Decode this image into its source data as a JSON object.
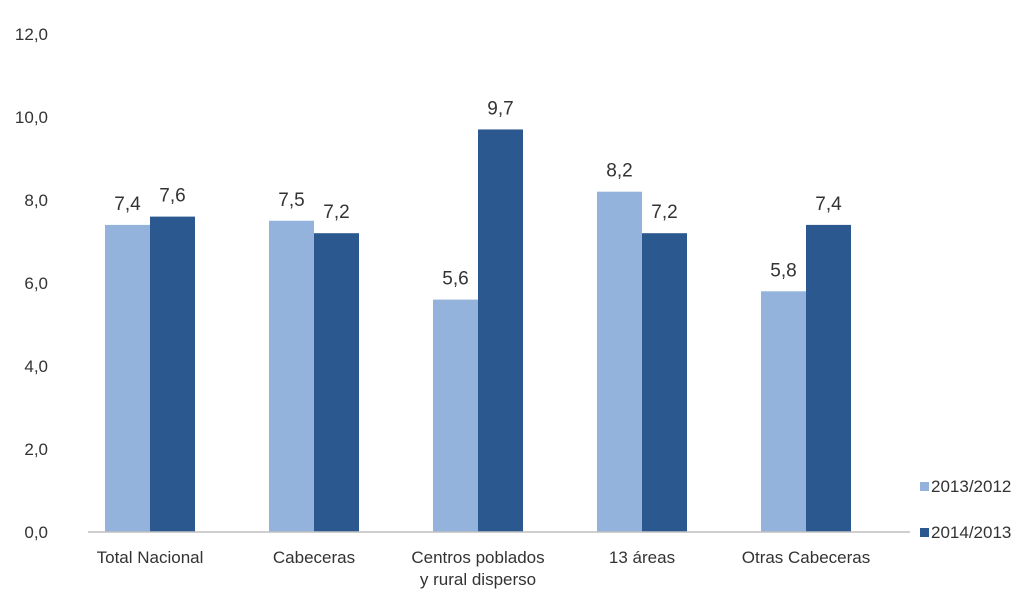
{
  "chart_data": {
    "type": "bar",
    "title": "",
    "xlabel": "",
    "ylabel": "",
    "ylim": [
      0,
      12
    ],
    "yticks": [
      "0,0",
      "2,0",
      "4,0",
      "6,0",
      "8,0",
      "10,0",
      "12,0"
    ],
    "ytick_values": [
      0,
      2,
      4,
      6,
      8,
      10,
      12
    ],
    "grid": false,
    "legend_position": "right-bottom",
    "categories": [
      [
        "Total Nacional"
      ],
      [
        "Cabeceras"
      ],
      [
        "Centros poblados",
        "y rural disperso"
      ],
      [
        "13 áreas"
      ],
      [
        "Otras Cabeceras"
      ]
    ],
    "series": [
      {
        "name": "2013/2012",
        "color": "#94b3dc",
        "values": [
          7.4,
          7.5,
          5.6,
          8.2,
          5.8
        ],
        "labels": [
          "7,4",
          "7,5",
          "5,6",
          "8,2",
          "5,8"
        ]
      },
      {
        "name": "2014/2013",
        "color": "#2c5890",
        "values": [
          7.6,
          7.2,
          9.7,
          7.2,
          7.4
        ],
        "labels": [
          "7,6",
          "7,2",
          "9,7",
          "7,2",
          "7,4"
        ]
      }
    ]
  }
}
